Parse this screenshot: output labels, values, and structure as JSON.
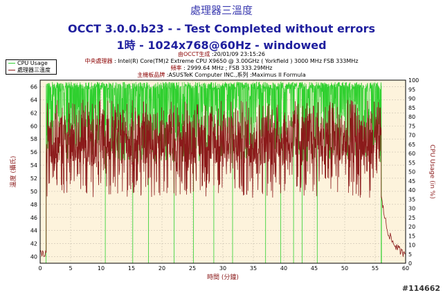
{
  "header": {
    "title_line1": "處理器三溫度",
    "title_line2": "OCCT 3.0.0.b23 -  - Test Completed without errors",
    "title_line3": "1時 - 1024x768@60Hz - windowed"
  },
  "info": {
    "generated_label": "由OCCT生成",
    "generated_value": "20/01/09 23:15:26",
    "cpu_label": "中央處理器",
    "cpu_value": "Intel(R) Core(TM)2 Extreme CPU X9650 @ 3.00GHz ( Yorkfield ) 3000 MHz FSB 333MHz",
    "freq_label": "頻率",
    "freq_value": "2999.64 MHz ; FSB 333.29MHz",
    "mb_label": "主機板品牌",
    "mb_value": "ASUSTeK Computer INC.,系列 :Maximus II Formula"
  },
  "watermark": "#114662",
  "chart_data": {
    "type": "line",
    "xlabel": "時間 (分鐘)",
    "ylabel": "溫度 (攝氏)",
    "y2label": "CPU Usage (in %)",
    "xlim": [
      0,
      60
    ],
    "ylim": [
      39,
      67
    ],
    "y2lim": [
      0,
      100
    ],
    "x_ticks": [
      0,
      5,
      10,
      15,
      20,
      25,
      30,
      35,
      40,
      45,
      50,
      55,
      60
    ],
    "y_ticks": [
      40,
      42,
      44,
      46,
      48,
      50,
      52,
      54,
      56,
      58,
      60,
      62,
      64,
      66
    ],
    "y2_ticks": [
      0,
      5,
      10,
      15,
      20,
      25,
      30,
      35,
      40,
      45,
      50,
      55,
      60,
      65,
      70,
      75,
      80,
      85,
      90,
      95,
      100
    ],
    "grid": true,
    "legend": "top-left",
    "background": "#fdf3dc",
    "series": [
      {
        "name": "CPU Usage",
        "axis": "right",
        "color": "#2fd02f",
        "idle_level": 0,
        "load_range": [
          55,
          99
        ],
        "load_start_min": 1,
        "load_end_min": 56,
        "drop_x": [
          10.7,
          15.2,
          17.8,
          22.0,
          25.2,
          28.5,
          31.6,
          37.0,
          39.5,
          41.6,
          43.0,
          45.5,
          56.0
        ]
      },
      {
        "name": "處理器三溫度",
        "axis": "left",
        "color": "#8b1a1a",
        "idle_range": [
          40,
          41
        ],
        "load_range": [
          49,
          64
        ],
        "load_start_min": 1,
        "load_end_min": 56,
        "cooldown": [
          [
            56,
            49
          ],
          [
            57,
            44
          ],
          [
            58,
            42
          ],
          [
            59.5,
            40.5
          ],
          [
            60,
            41
          ]
        ]
      }
    ]
  }
}
